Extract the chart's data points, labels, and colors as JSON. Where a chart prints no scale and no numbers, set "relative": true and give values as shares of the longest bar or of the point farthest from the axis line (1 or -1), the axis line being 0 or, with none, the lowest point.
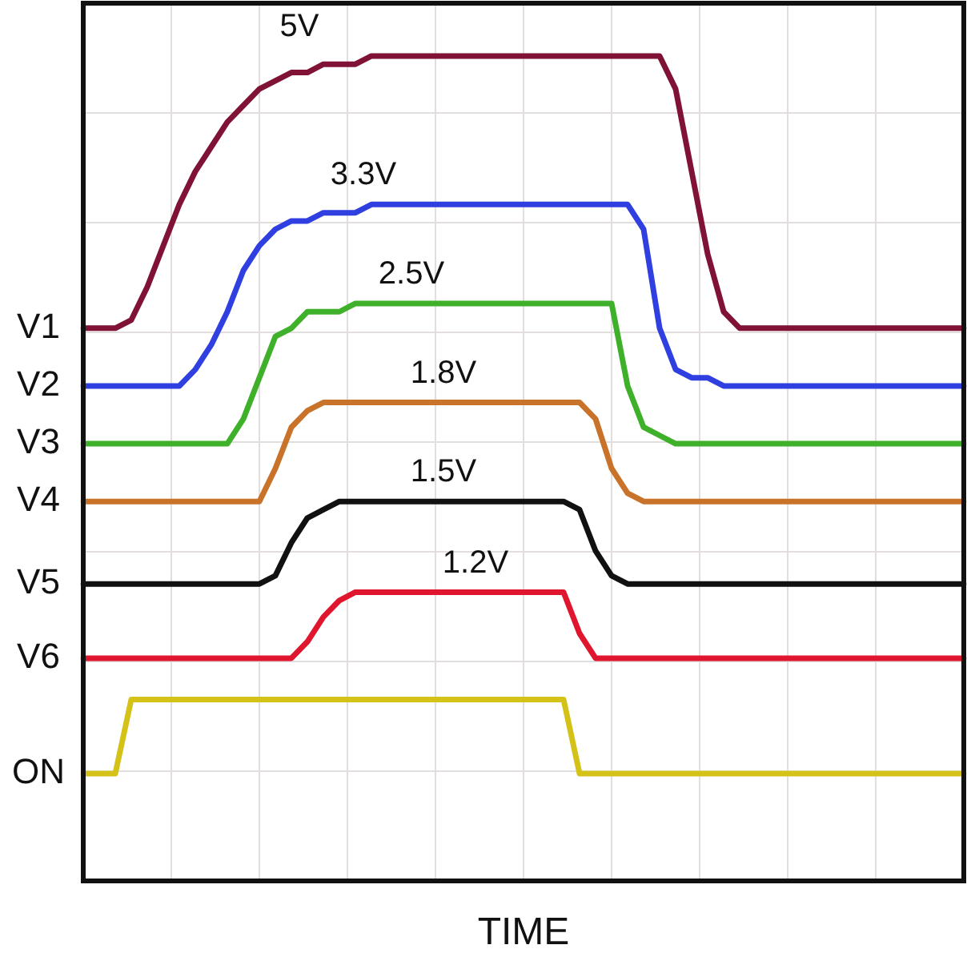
{
  "chart_data": {
    "type": "line",
    "xlabel": "TIME",
    "relative": true,
    "grid": true,
    "legend": false,
    "tick_labels": false,
    "marker": "none",
    "categories": [
      null,
      null,
      null,
      null,
      null,
      null,
      null,
      null,
      null,
      null,
      null,
      null,
      null,
      null,
      null,
      null,
      null,
      null,
      null,
      null,
      null,
      null,
      null,
      null,
      null,
      null,
      null,
      null,
      null,
      null,
      null,
      null,
      null,
      null,
      null,
      null,
      null,
      null,
      null,
      null,
      null,
      null,
      null,
      null,
      null,
      null,
      null,
      null,
      null,
      null,
      null,
      null,
      null,
      null,
      null,
      null
    ],
    "series": [
      {
        "name": "V1",
        "color": "#7f1235",
        "values": [
          0.67,
          0.67,
          0.67,
          0.68,
          0.72,
          0.77,
          0.82,
          0.86,
          0.89,
          0.92,
          0.94,
          0.96,
          0.97,
          0.98,
          0.98,
          0.99,
          0.99,
          0.99,
          1,
          1,
          1,
          1,
          1,
          1,
          1,
          1,
          1,
          1,
          1,
          1,
          1,
          1,
          1,
          1,
          1,
          1,
          1,
          0.96,
          0.86,
          0.76,
          0.69,
          0.67,
          0.67,
          0.67,
          0.67,
          0.67,
          0.67,
          0.67,
          0.67,
          0.67,
          0.67,
          0.67,
          0.67,
          0.67,
          0.67,
          0.67
        ]
      },
      {
        "name": "V2",
        "color": "#2f3fe0",
        "values": [
          0.6,
          0.6,
          0.6,
          0.6,
          0.6,
          0.6,
          0.6,
          0.62,
          0.65,
          0.69,
          0.74,
          0.77,
          0.79,
          0.8,
          0.8,
          0.81,
          0.81,
          0.81,
          0.82,
          0.82,
          0.82,
          0.82,
          0.82,
          0.82,
          0.82,
          0.82,
          0.82,
          0.82,
          0.82,
          0.82,
          0.82,
          0.82,
          0.82,
          0.82,
          0.82,
          0.79,
          0.67,
          0.62,
          0.61,
          0.61,
          0.6,
          0.6,
          0.6,
          0.6,
          0.6,
          0.6,
          0.6,
          0.6,
          0.6,
          0.6,
          0.6,
          0.6,
          0.6,
          0.6,
          0.6,
          0.6
        ]
      },
      {
        "name": "V3",
        "color": "#3fb02a",
        "values": [
          0.53,
          0.53,
          0.53,
          0.53,
          0.53,
          0.53,
          0.53,
          0.53,
          0.53,
          0.53,
          0.56,
          0.61,
          0.66,
          0.67,
          0.69,
          0.69,
          0.69,
          0.7,
          0.7,
          0.7,
          0.7,
          0.7,
          0.7,
          0.7,
          0.7,
          0.7,
          0.7,
          0.7,
          0.7,
          0.7,
          0.7,
          0.7,
          0.7,
          0.7,
          0.6,
          0.55,
          0.54,
          0.53,
          0.53,
          0.53,
          0.53,
          0.53,
          0.53,
          0.53,
          0.53,
          0.53,
          0.53,
          0.53,
          0.53,
          0.53,
          0.53,
          0.53,
          0.53,
          0.53,
          0.53,
          0.53
        ]
      },
      {
        "name": "V4",
        "color": "#c8722a",
        "values": [
          0.46,
          0.46,
          0.46,
          0.46,
          0.46,
          0.46,
          0.46,
          0.46,
          0.46,
          0.46,
          0.46,
          0.46,
          0.5,
          0.55,
          0.57,
          0.58,
          0.58,
          0.58,
          0.58,
          0.58,
          0.58,
          0.58,
          0.58,
          0.58,
          0.58,
          0.58,
          0.58,
          0.58,
          0.58,
          0.58,
          0.58,
          0.58,
          0.56,
          0.5,
          0.47,
          0.46,
          0.46,
          0.46,
          0.46,
          0.46,
          0.46,
          0.46,
          0.46,
          0.46,
          0.46,
          0.46,
          0.46,
          0.46,
          0.46,
          0.46,
          0.46,
          0.46,
          0.46,
          0.46,
          0.46,
          0.46
        ]
      },
      {
        "name": "V5",
        "color": "#111111",
        "values": [
          0.36,
          0.36,
          0.36,
          0.36,
          0.36,
          0.36,
          0.36,
          0.36,
          0.36,
          0.36,
          0.36,
          0.36,
          0.37,
          0.41,
          0.44,
          0.45,
          0.46,
          0.46,
          0.46,
          0.46,
          0.46,
          0.46,
          0.46,
          0.46,
          0.46,
          0.46,
          0.46,
          0.46,
          0.46,
          0.46,
          0.46,
          0.45,
          0.4,
          0.37,
          0.36,
          0.36,
          0.36,
          0.36,
          0.36,
          0.36,
          0.36,
          0.36,
          0.36,
          0.36,
          0.36,
          0.36,
          0.36,
          0.36,
          0.36,
          0.36,
          0.36,
          0.36,
          0.36,
          0.36,
          0.36,
          0.36
        ]
      },
      {
        "name": "V6",
        "color": "#e0162e",
        "values": [
          0.27,
          0.27,
          0.27,
          0.27,
          0.27,
          0.27,
          0.27,
          0.27,
          0.27,
          0.27,
          0.27,
          0.27,
          0.27,
          0.27,
          0.29,
          0.32,
          0.34,
          0.35,
          0.35,
          0.35,
          0.35,
          0.35,
          0.35,
          0.35,
          0.35,
          0.35,
          0.35,
          0.35,
          0.35,
          0.35,
          0.35,
          0.3,
          0.27,
          0.27,
          0.27,
          0.27,
          0.27,
          0.27,
          0.27,
          0.27,
          0.27,
          0.27,
          0.27,
          0.27,
          0.27,
          0.27,
          0.27,
          0.27,
          0.27,
          0.27,
          0.27,
          0.27,
          0.27,
          0.27,
          0.27,
          0.27
        ]
      },
      {
        "name": "ON",
        "color": "#d4c218",
        "values": [
          0.13,
          0.13,
          0.13,
          0.22,
          0.22,
          0.22,
          0.22,
          0.22,
          0.22,
          0.22,
          0.22,
          0.22,
          0.22,
          0.22,
          0.22,
          0.22,
          0.22,
          0.22,
          0.22,
          0.22,
          0.22,
          0.22,
          0.22,
          0.22,
          0.22,
          0.22,
          0.22,
          0.22,
          0.22,
          0.22,
          0.22,
          0.13,
          0.13,
          0.13,
          0.13,
          0.13,
          0.13,
          0.13,
          0.13,
          0.13,
          0.13,
          0.13,
          0.13,
          0.13,
          0.13,
          0.13,
          0.13,
          0.13,
          0.13,
          0.13,
          0.13,
          0.13,
          0.13,
          0.13,
          0.13,
          0.13
        ]
      }
    ],
    "annotations": [
      "5V",
      "3.3V",
      "2.5V",
      "1.8V",
      "1.5V",
      "1.2V"
    ]
  }
}
